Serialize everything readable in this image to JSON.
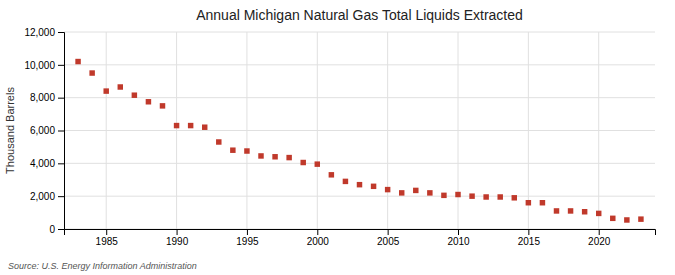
{
  "chart_data": {
    "type": "scatter",
    "title": "Annual Michigan Natural Gas Total Liquids Extracted",
    "ylabel": "Thousand Barrels",
    "annotation": "Source: U.S. Energy Information Administration",
    "x": [
      1983,
      1984,
      1985,
      1986,
      1987,
      1988,
      1989,
      1990,
      1991,
      1992,
      1993,
      1994,
      1995,
      1996,
      1997,
      1998,
      1999,
      2000,
      2001,
      2002,
      2003,
      2004,
      2005,
      2006,
      2007,
      2008,
      2009,
      2010,
      2011,
      2012,
      2013,
      2014,
      2015,
      2016,
      2017,
      2018,
      2019,
      2020,
      2021,
      2022,
      2023
    ],
    "values": [
      10200,
      9500,
      8400,
      8650,
      8150,
      7750,
      7500,
      6300,
      6300,
      6200,
      5300,
      4800,
      4750,
      4450,
      4400,
      4350,
      4050,
      3950,
      3300,
      2900,
      2700,
      2600,
      2400,
      2200,
      2350,
      2200,
      2050,
      2100,
      2000,
      1950,
      1950,
      1900,
      1600,
      1600,
      1100,
      1100,
      1050,
      950,
      650,
      550,
      600
    ],
    "color": "#c0392b",
    "marker": "square",
    "xlim": [
      1982,
      2024
    ],
    "xticks": [
      1985,
      1990,
      1995,
      2000,
      2005,
      2010,
      2015,
      2020
    ],
    "ylim": [
      0,
      12000
    ],
    "yticks": [
      0,
      {
        "value": 2000,
        "label": "2,000"
      },
      {
        "value": 4000,
        "label": "4,000"
      },
      {
        "value": 6000,
        "label": "6,000"
      },
      {
        "value": 8000,
        "label": "8,000"
      },
      {
        "value": 10000,
        "label": "10,000"
      },
      {
        "value": 12000,
        "label": "12,000"
      }
    ],
    "grid": true
  }
}
